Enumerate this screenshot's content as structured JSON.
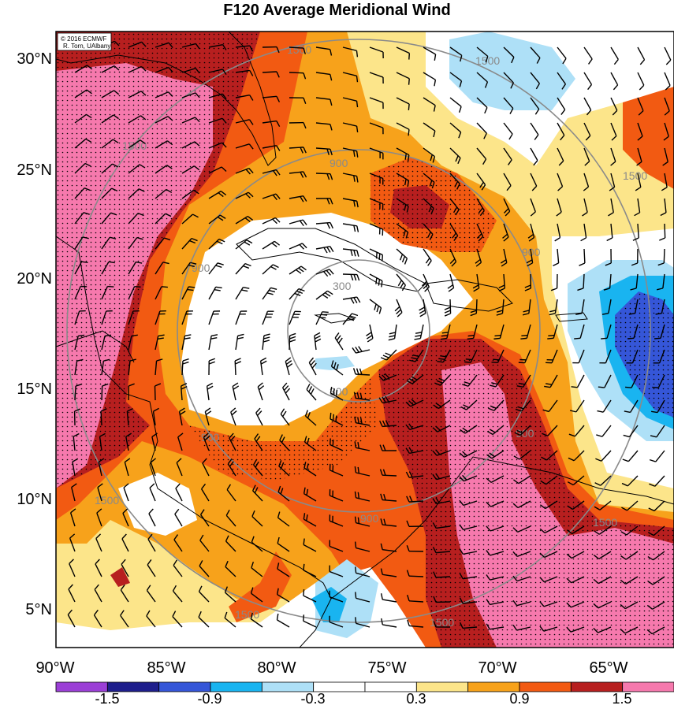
{
  "title": "F120 Average Meridional Wind",
  "credit": {
    "line1": "© 2016 ECMWF",
    "line2": "R. Torn, UAlbany"
  },
  "lat_labels": [
    "30°N",
    "25°N",
    "20°N",
    "15°N",
    "10°N",
    "5°N"
  ],
  "lon_labels": [
    "90°W",
    "85°W",
    "80°W",
    "75°W",
    "70°W",
    "65°W"
  ],
  "colorbar": {
    "labels": [
      "-1.5",
      "-0.9",
      "-0.3",
      "0.3",
      "0.9",
      "1.5"
    ],
    "colors": [
      "#9b3fd6",
      "#1e1e8c",
      "#3556d8",
      "#19b4f0",
      "#aee0f7",
      "#ffffff",
      "#ffffff",
      "#fce58a",
      "#f7a21b",
      "#f25a12",
      "#b71f1f",
      "#f679ad"
    ]
  },
  "contours": {
    "labels": [
      "300",
      "300",
      "900",
      "900",
      "900",
      "900",
      "900",
      "900",
      "1500",
      "1500",
      "1500",
      "1500",
      "1500",
      "1500",
      "1500",
      "1500"
    ]
  },
  "colors": {
    "pink": "#f679ad",
    "dark_red": "#b71f1f",
    "red": "#f25a12",
    "orange": "#f7a21b",
    "yellow": "#fce58a",
    "light_blue": "#aee0f7",
    "blue": "#19b4f0",
    "mid_blue": "#3556d8",
    "contour": "#8a8a8a"
  }
}
